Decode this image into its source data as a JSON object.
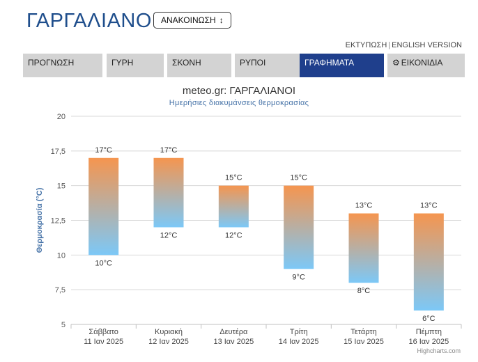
{
  "header": {
    "title": "ΓΑΡΓΑΛΙΑΝΟΙ",
    "announce_label": "ΑΝΑΚΟΙΝΩΣΗ",
    "announce_icon": "sort-arrow-icon",
    "print_link": "ΕΚΤΥΠΩΣΗ",
    "separator": "|",
    "english_link": "ENGLISH VERSION"
  },
  "tabs": [
    {
      "label": "ΠΡΟΓΝΩΣΗ",
      "active": false
    },
    {
      "label": "ΓΥΡΗ",
      "active": false
    },
    {
      "label": "ΣΚΟΝΗ",
      "active": false
    },
    {
      "label": "ΡΥΠΟΙ",
      "active": false
    },
    {
      "label": "ΓΡΑΦΗΜΑΤΑ",
      "active": true
    },
    {
      "label": "ΕΙΚΟΝΙΔΙΑ",
      "active": false,
      "icon": "gear-icon"
    }
  ],
  "colors": {
    "brand": "#1f4e8c",
    "active_tab": "#1f3f8c",
    "tab_bg": "#d3d3d3",
    "bar_top": "#f5954f",
    "bar_bottom": "#7cc8f7"
  },
  "credits": "Highcharts.com",
  "chart_data": {
    "type": "columnrange",
    "title": "meteo.gr: ΓΑΡΓΑΛΙΑΝΟΙ",
    "subtitle": "Ημερήσιες διακυμάνσεις θερμοκρασίας",
    "ylabel": "Θερμοκρασία (°C)",
    "ylim": [
      5,
      20
    ],
    "yticks": [
      "5",
      "7,5",
      "10",
      "12,5",
      "15",
      "17,5",
      "20"
    ],
    "grid": true,
    "categories": [
      {
        "day": "Σάββατο",
        "date": "11 Ιαν 2025"
      },
      {
        "day": "Κυριακή",
        "date": "12 Ιαν 2025"
      },
      {
        "day": "Δευτέρα",
        "date": "13 Ιαν 2025"
      },
      {
        "day": "Τρίτη",
        "date": "14 Ιαν 2025"
      },
      {
        "day": "Τετάρτη",
        "date": "15 Ιαν 2025"
      },
      {
        "day": "Πέμπτη",
        "date": "16 Ιαν 2025"
      }
    ],
    "low": [
      10,
      12,
      12,
      9,
      8,
      6
    ],
    "high": [
      17,
      17,
      15,
      15,
      13,
      13
    ],
    "unit": "°C"
  }
}
